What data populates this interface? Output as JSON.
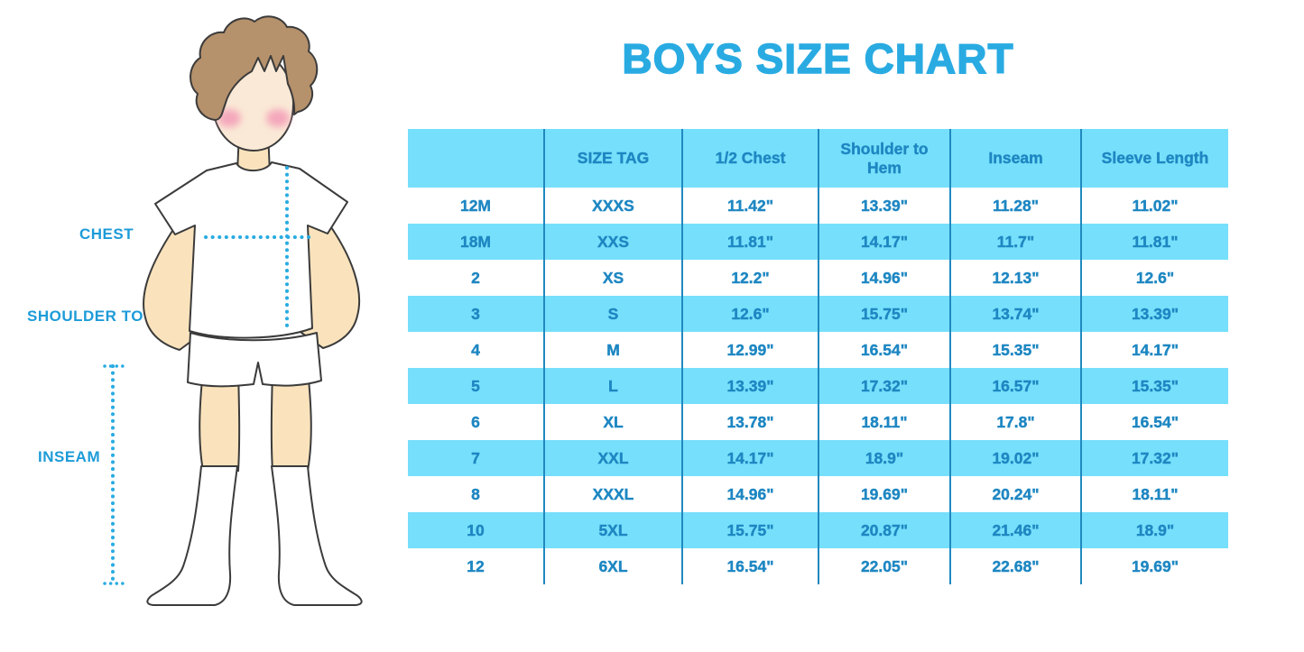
{
  "page": {
    "title": "BOYS SIZE CHART"
  },
  "figure": {
    "description": "illustration of a boy in white t-shirt, shorts and knee socks with dotted measurement guides",
    "labels": {
      "chest": "CHEST",
      "shoulder_to_hem": "SHOULDER TO HEM",
      "inseam": "INSEAM"
    }
  },
  "chart_data": {
    "type": "table",
    "title": "BOYS SIZE CHART",
    "columns": [
      "",
      "SIZE TAG",
      "1/2 Chest",
      "Shoulder to Hem",
      "Inseam",
      "Sleeve Length"
    ],
    "rows": [
      [
        "12M",
        "XXXS",
        "11.42\"",
        "13.39\"",
        "11.28\"",
        "11.02\""
      ],
      [
        "18M",
        "XXS",
        "11.81\"",
        "14.17\"",
        "11.7\"",
        "11.81\""
      ],
      [
        "2",
        "XS",
        "12.2\"",
        "14.96\"",
        "12.13\"",
        "12.6\""
      ],
      [
        "3",
        "S",
        "12.6\"",
        "15.75\"",
        "13.74\"",
        "13.39\""
      ],
      [
        "4",
        "M",
        "12.99\"",
        "16.54\"",
        "15.35\"",
        "14.17\""
      ],
      [
        "5",
        "L",
        "13.39\"",
        "17.32\"",
        "16.57\"",
        "15.35\""
      ],
      [
        "6",
        "XL",
        "13.78\"",
        "18.11\"",
        "17.8\"",
        "16.54\""
      ],
      [
        "7",
        "XXL",
        "14.17\"",
        "18.9\"",
        "19.02\"",
        "17.32\""
      ],
      [
        "8",
        "XXXL",
        "14.96\"",
        "19.69\"",
        "20.24\"",
        "18.11\""
      ],
      [
        "10",
        "5XL",
        "15.75\"",
        "20.87\"",
        "21.46\"",
        "18.9\""
      ],
      [
        "12",
        "6XL",
        "16.54\"",
        "22.05\"",
        "22.68\"",
        "19.69\""
      ]
    ],
    "layout": {
      "striped_rows": "alternating white / light blue, header row light blue",
      "gridlines": "vertical column dividers only"
    }
  },
  "colors": {
    "accent_blue": "#29ABE2",
    "label_blue": "#1D9BD8",
    "table_text_blue": "#1E87C2",
    "divider_blue": "#2089BF",
    "stripe_light_blue": "#76DFFB",
    "skin": "#FAE3BC",
    "face_skin": "#FAE9D6",
    "hair_brown": "#B5916C",
    "cheek_pink": "#F4A8BB",
    "outline": "#3B3B3B"
  }
}
